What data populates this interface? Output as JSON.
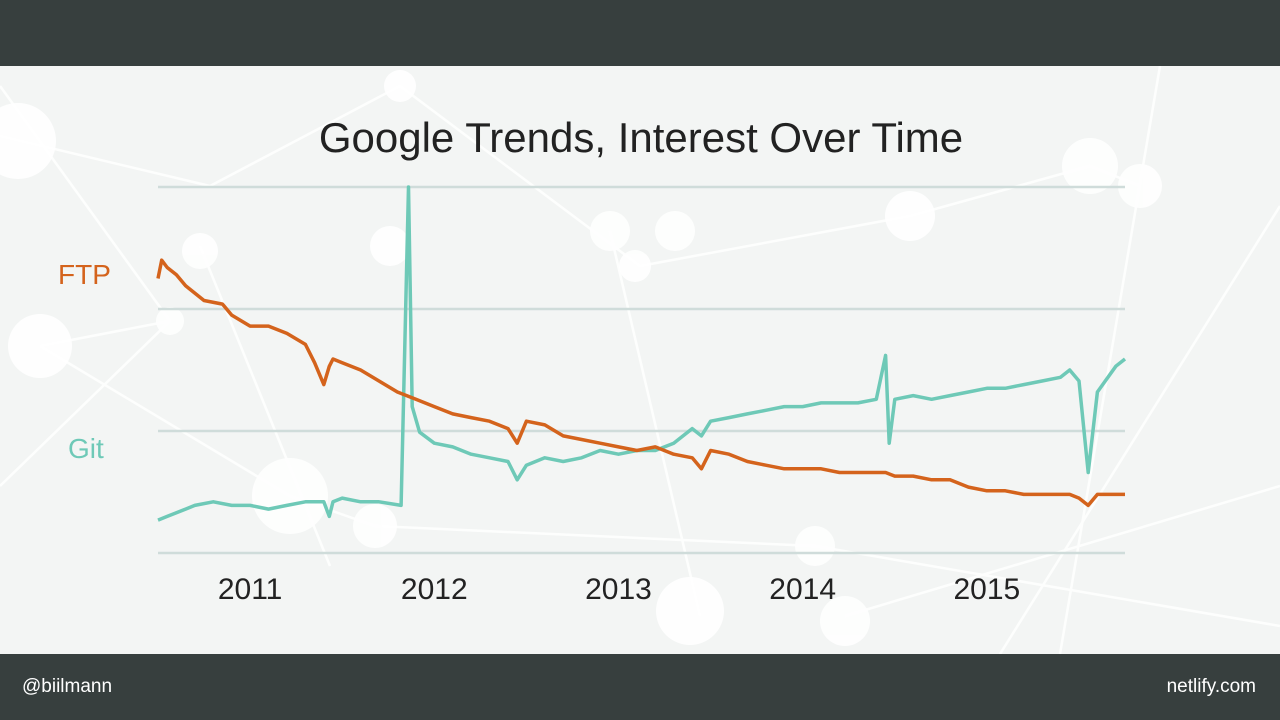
{
  "footer": {
    "handle": "@biilmann",
    "site": "netlify.com"
  },
  "colors": {
    "bar": "#373f3e",
    "ftp": "#d4631c",
    "git": "#6ec9b7",
    "grid": "#cfdcda",
    "text": "#222222"
  },
  "chart_data": {
    "type": "line",
    "title": "Google Trends, Interest Over Time",
    "x_ticks": [
      "2011",
      "2012",
      "2013",
      "2014",
      "2015"
    ],
    "x_tick_values": [
      2011.0,
      2012.0,
      2013.0,
      2014.0,
      2015.0
    ],
    "xlim": [
      2010.5,
      2015.75
    ],
    "ylim": [
      0,
      100
    ],
    "grid": true,
    "series": [
      {
        "name": "FTP",
        "color": "#d4631c",
        "x": [
          2010.5,
          2010.52,
          2010.55,
          2010.6,
          2010.65,
          2010.75,
          2010.85,
          2010.9,
          2011.0,
          2011.1,
          2011.2,
          2011.3,
          2011.35,
          2011.4,
          2011.43,
          2011.45,
          2011.5,
          2011.6,
          2011.7,
          2011.8,
          2011.9,
          2012.0,
          2012.1,
          2012.2,
          2012.3,
          2012.4,
          2012.45,
          2012.5,
          2012.6,
          2012.7,
          2012.8,
          2012.9,
          2013.0,
          2013.1,
          2013.2,
          2013.3,
          2013.4,
          2013.45,
          2013.5,
          2013.6,
          2013.7,
          2013.8,
          2013.9,
          2014.0,
          2014.1,
          2014.2,
          2014.3,
          2014.45,
          2014.5,
          2014.6,
          2014.7,
          2014.8,
          2014.9,
          2015.0,
          2015.1,
          2015.2,
          2015.3,
          2015.45,
          2015.5,
          2015.55,
          2015.6,
          2015.7,
          2015.75
        ],
        "values": [
          75,
          80,
          78,
          76,
          73,
          69,
          68,
          65,
          62,
          62,
          60,
          57,
          52,
          46,
          51,
          53,
          52,
          50,
          47,
          44,
          42,
          40,
          38,
          37,
          36,
          34,
          30,
          36,
          35,
          32,
          31,
          30,
          29,
          28,
          29,
          27,
          26,
          23,
          28,
          27,
          25,
          24,
          23,
          23,
          23,
          22,
          22,
          22,
          21,
          21,
          20,
          20,
          18,
          17,
          17,
          16,
          16,
          16,
          15,
          13,
          16,
          16,
          16
        ]
      },
      {
        "name": "Git",
        "color": "#6ec9b7",
        "x": [
          2010.5,
          2010.55,
          2010.6,
          2010.65,
          2010.7,
          2010.8,
          2010.9,
          2011.0,
          2011.1,
          2011.2,
          2011.3,
          2011.4,
          2011.43,
          2011.45,
          2011.5,
          2011.6,
          2011.7,
          2011.82,
          2011.86,
          2011.88,
          2011.92,
          2012.0,
          2012.1,
          2012.2,
          2012.3,
          2012.4,
          2012.45,
          2012.5,
          2012.6,
          2012.7,
          2012.8,
          2012.9,
          2013.0,
          2013.1,
          2013.2,
          2013.3,
          2013.4,
          2013.45,
          2013.5,
          2013.6,
          2013.7,
          2013.8,
          2013.9,
          2014.0,
          2014.1,
          2014.2,
          2014.3,
          2014.4,
          2014.45,
          2014.47,
          2014.5,
          2014.6,
          2014.7,
          2014.8,
          2014.9,
          2015.0,
          2015.1,
          2015.2,
          2015.3,
          2015.4,
          2015.45,
          2015.5,
          2015.55,
          2015.6,
          2015.7,
          2015.75
        ],
        "values": [
          9,
          10,
          11,
          12,
          13,
          14,
          13,
          13,
          12,
          13,
          14,
          14,
          10,
          14,
          15,
          14,
          14,
          13,
          100,
          40,
          33,
          30,
          29,
          27,
          26,
          25,
          20,
          24,
          26,
          25,
          26,
          28,
          27,
          28,
          28,
          30,
          34,
          32,
          36,
          37,
          38,
          39,
          40,
          40,
          41,
          41,
          41,
          42,
          54,
          30,
          42,
          43,
          42,
          43,
          44,
          45,
          45,
          46,
          47,
          48,
          50,
          47,
          22,
          44,
          51,
          53
        ]
      }
    ]
  }
}
